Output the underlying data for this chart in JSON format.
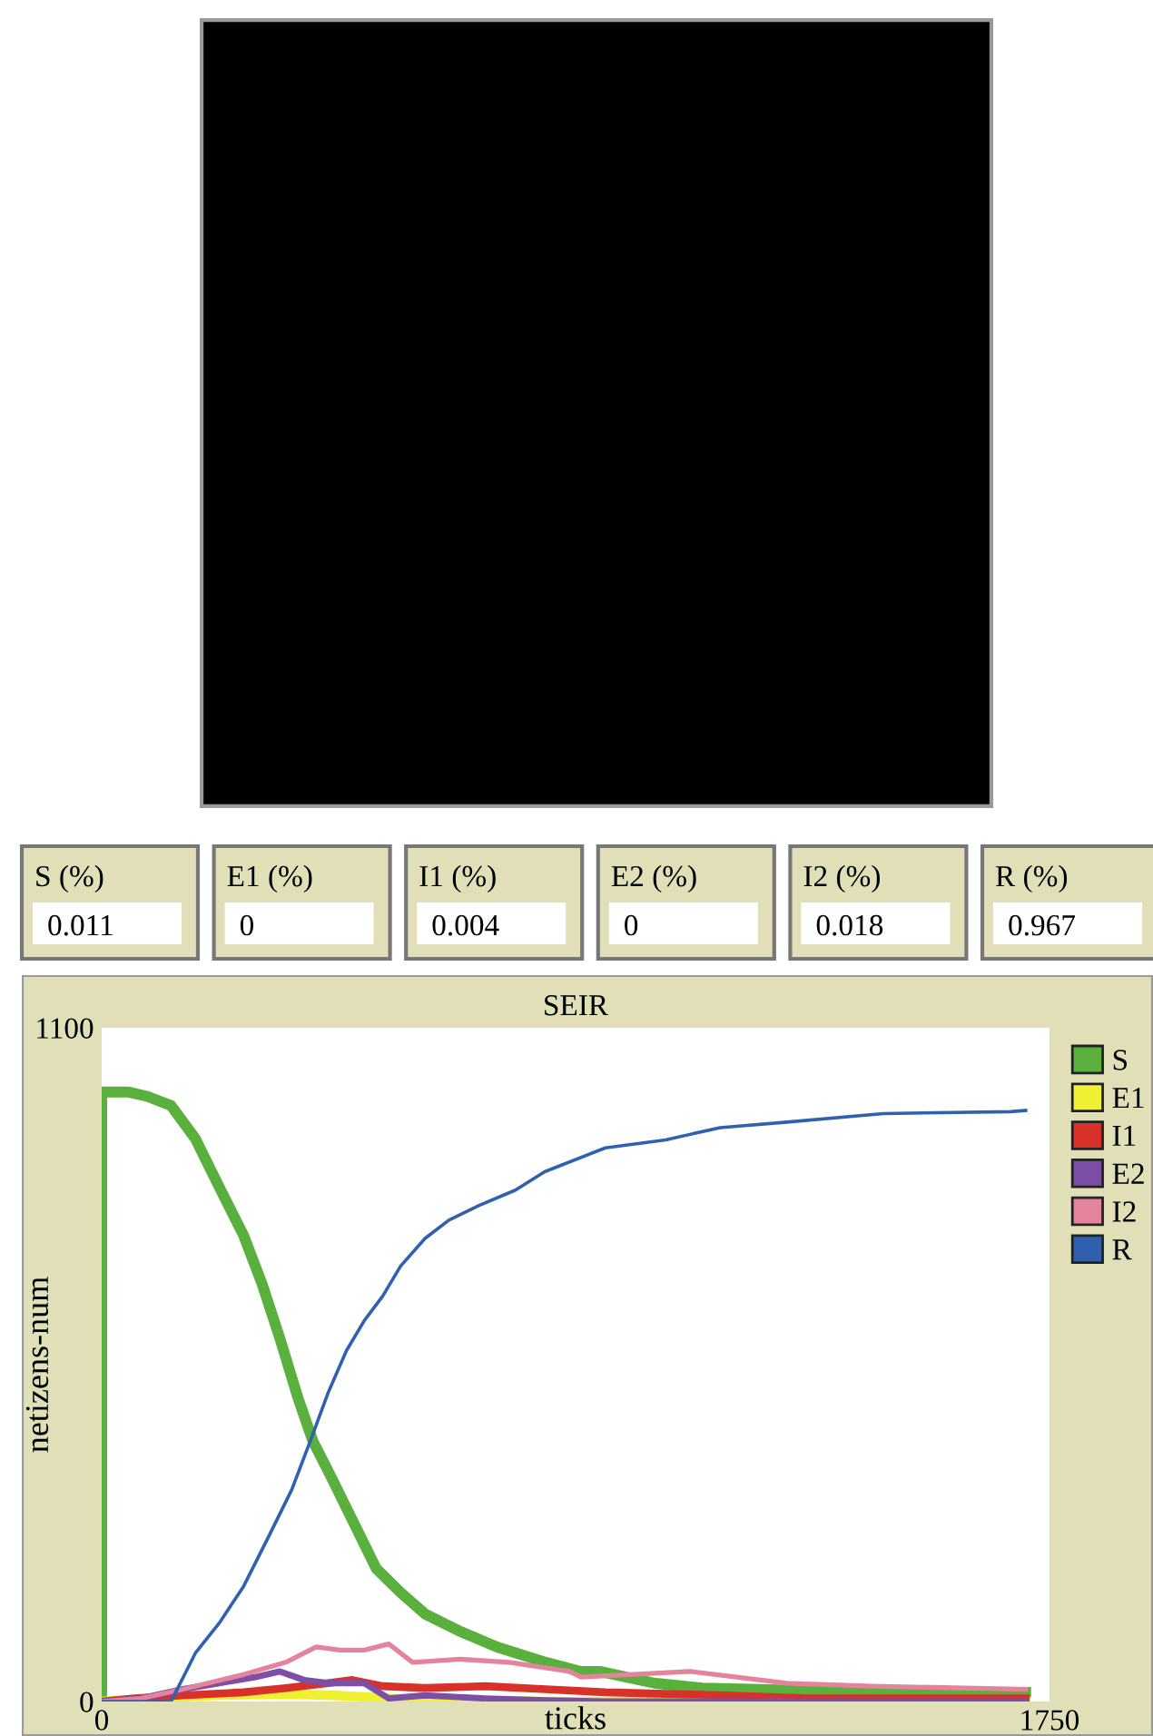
{
  "chart_data": [
    {
      "type": "other",
      "annotations": [
        "S (%)",
        "0.011",
        "E1 (%)",
        "0",
        "I1 (%)",
        "0.004",
        "E2 (%)",
        "0",
        "I2 (%)",
        "0.018",
        "R (%)",
        "0.967"
      ]
    },
    {
      "type": "line",
      "title": "SEIR",
      "xlabel": "ticks",
      "ylabel": "netizens-num",
      "xlim": [
        0,
        1750
      ],
      "ylim": [
        0,
        1100
      ],
      "xticks": [
        0,
        1750
      ],
      "yticks": [
        0,
        1100
      ],
      "grid": false,
      "legend": "right",
      "series": [
        {
          "name": "S",
          "color": "#59b03c",
          "x": [
            0,
            0,
            50,
            84,
            128,
            173,
            217,
            262,
            296,
            329,
            363,
            390,
            424,
            463,
            507,
            552,
            597,
            663,
            730,
            820,
            885,
            920,
            1020,
            1109,
            1445,
            1706
          ],
          "values": [
            0,
            995,
            995,
            988,
            973,
            919,
            840,
            761,
            682,
            593,
            494,
            425,
            366,
            296,
            217,
            178,
            143,
            114,
            89,
            64,
            49,
            49,
            30,
            22,
            15,
            15
          ]
        },
        {
          "name": "E1",
          "color": "#f0f032",
          "x": [
            0,
            95,
            206,
            340,
            429,
            541,
            652,
            820,
            1706
          ],
          "values": [
            0,
            5,
            10,
            12,
            10,
            5,
            2,
            0,
            0
          ]
        },
        {
          "name": "I1",
          "color": "#d7312a",
          "x": [
            0,
            61,
            150,
            262,
            340,
            418,
            463,
            519,
            597,
            708,
            820,
            930,
            1154,
            1299,
            1706
          ],
          "values": [
            0,
            5,
            10,
            15,
            22,
            30,
            35,
            25,
            22,
            25,
            20,
            15,
            10,
            5,
            5
          ]
        },
        {
          "name": "E2",
          "color": "#7d4ea6",
          "x": [
            0,
            72,
            150,
            217,
            284,
            329,
            374,
            418,
            485,
            530,
            597,
            708,
            820,
            931,
            1706
          ],
          "values": [
            0,
            5,
            20,
            30,
            40,
            49,
            35,
            30,
            30,
            5,
            10,
            5,
            2,
            0,
            0
          ]
        },
        {
          "name": "I2",
          "color": "#e4839b",
          "x": [
            0,
            72,
            150,
            262,
            340,
            396,
            440,
            485,
            530,
            574,
            663,
            753,
            864,
            885,
            1087,
            1265,
            1421,
            1706
          ],
          "values": [
            0,
            5,
            20,
            44,
            64,
            89,
            84,
            84,
            94,
            64,
            69,
            64,
            49,
            40,
            49,
            30,
            25,
            20
          ]
        },
        {
          "name": "R",
          "color": "#3060b0",
          "x": [
            0,
            128,
            173,
            217,
            262,
            307,
            351,
            385,
            418,
            452,
            485,
            519,
            552,
            597,
            641,
            697,
            764,
            818,
            930,
            1041,
            1142,
            1265,
            1443,
            1678,
            1706
          ],
          "values": [
            0,
            0,
            79,
            128,
            188,
            267,
            346,
            425,
            504,
            573,
            622,
            662,
            711,
            756,
            786,
            810,
            835,
            865,
            904,
            917,
            937,
            946,
            960,
            963,
            965
          ]
        }
      ]
    }
  ]
}
